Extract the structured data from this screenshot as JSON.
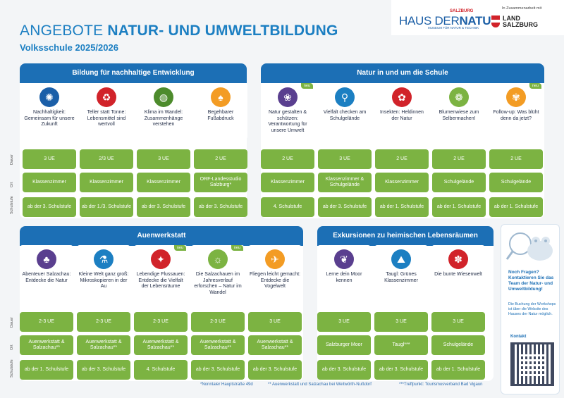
{
  "header": {
    "title_prefix": "ANGEBOTE",
    "title_bold": "NATUR- UND UMWELTBILDUNG",
    "subtitle": "Volksschule 2025/2026",
    "logo_haus": "HAUS DER",
    "logo_natur": "NATUR",
    "logo_salzburg": "SALZBURG",
    "logo_tagline": "MUSEUM FÜR NATUR & TECHNIK",
    "coop_text": "In Zusammenarbeit mit",
    "land_line1": "LAND",
    "land_line2": "SALZBURG"
  },
  "row_labels": {
    "dauer": "Dauer",
    "ort": "Ort",
    "schulstufe": "Schulstufe"
  },
  "sections": [
    {
      "title": "Bildung für nachhaltige Entwicklung",
      "color": "#1c6fb5",
      "cards": [
        {
          "label": "Nachhaltigkeit: Gemeinsam für unsere Zukunft",
          "icon": "sdg-wheel-icon",
          "icon_color": "#1b5fa8",
          "glyph": "✺",
          "neu": false,
          "dauer": "3 UE",
          "ort": "Klassenzimmer",
          "stufe": "ab der 3. Schulstufe"
        },
        {
          "label": "Teller statt Tonne: Lebensmittel sind wertvoll",
          "icon": "trash-can-icon",
          "icon_color": "#d1232a",
          "glyph": "♻",
          "neu": false,
          "dauer": "2/3 UE",
          "ort": "Klassenzimmer",
          "stufe": "ab der 1./3. Schulstufe"
        },
        {
          "label": "Klima im Wandel: Zusammenhänge verstehen",
          "icon": "globe-icon",
          "icon_color": "#4d8b2c",
          "glyph": "◍",
          "neu": false,
          "dauer": "3 UE",
          "ort": "Klassenzimmer",
          "stufe": "ab der 3. Schulstufe"
        },
        {
          "label": "Begehbarer Fußabdruck",
          "icon": "footprint-icon",
          "icon_color": "#f39c24",
          "glyph": "♠",
          "neu": false,
          "dauer": "2 UE",
          "ort": "ORF-Landesstudio Salzburg*",
          "stufe": "ab der 3. Schulstufe"
        }
      ]
    },
    {
      "title": "Natur in und um die Schule",
      "color": "#1c6fb5",
      "cards": [
        {
          "label": "Natur gestalten & schützen: Verantwortung für unsere Umwelt",
          "icon": "plant-hand-icon",
          "icon_color": "#5a3f8f",
          "glyph": "❀",
          "neu": true,
          "dauer": "2 UE",
          "ort": "Klassenzimmer",
          "stufe": "4. Schulstufe"
        },
        {
          "label": "Vielfalt checken am Schulgelände",
          "icon": "magnifier-icon",
          "icon_color": "#1c7fc2",
          "glyph": "⚲",
          "neu": false,
          "dauer": "3 UE",
          "ort": "Klassenzimmer & Schulgelände",
          "stufe": "ab der 3. Schulstufe"
        },
        {
          "label": "Insekten: Heldinnen der Natur",
          "icon": "ladybug-icon",
          "icon_color": "#d1232a",
          "glyph": "✿",
          "neu": false,
          "dauer": "2 UE",
          "ort": "Klassenzimmer",
          "stufe": "ab der 1. Schulstufe"
        },
        {
          "label": "Blumenwiese zum Selbermachen!",
          "icon": "flower-icon",
          "icon_color": "#7cb342",
          "glyph": "❁",
          "neu": false,
          "dauer": "2 UE",
          "ort": "Schulgelände",
          "stufe": "ab der 1. Schulstufe"
        },
        {
          "label": "Follow-up: Was blüht denn da jetzt?",
          "icon": "blossom-icon",
          "icon_color": "#f39c24",
          "glyph": "✾",
          "neu": true,
          "dauer": "2 UE",
          "ort": "Schulgelände",
          "stufe": "ab der 1. Schulstufe"
        }
      ]
    },
    {
      "title": "Auenwerkstatt",
      "color": "#1c6fb5",
      "cards": [
        {
          "label": "Abenteuer Salzachau: Entdecke die Natur",
          "icon": "tree-icon",
          "icon_color": "#5a3f8f",
          "glyph": "♣",
          "neu": false,
          "dauer": "2-3 UE",
          "ort": "Auenwerkstatt & Salzachau**",
          "stufe": "ab der 1. Schulstufe"
        },
        {
          "label": "Kleine Welt ganz groß: Mikroskopieren in der Au",
          "icon": "microscope-icon",
          "icon_color": "#1c7fc2",
          "glyph": "⚗",
          "neu": false,
          "dauer": "2-3 UE",
          "ort": "Auenwerkstatt & Salzachau**",
          "stufe": "ab der 3. Schulstufe"
        },
        {
          "label": "Lebendige Flussauen: Entdecke die Vielfalt der Lebensräume",
          "icon": "frog-icon",
          "icon_color": "#d1232a",
          "glyph": "✦",
          "neu": true,
          "dauer": "2-3 UE",
          "ort": "Auenwerkstatt & Salzachau**",
          "stufe": "4. Schulstufe"
        },
        {
          "label": "Die Salzachauen im Jahresverlauf erforschen – Natur im Wandel",
          "icon": "seasons-icon",
          "icon_color": "#7cb342",
          "glyph": "☼",
          "neu": true,
          "dauer": "2-3 UE",
          "ort": "Auenwerkstatt & Salzachau**",
          "stufe": "ab der 3. Schulstufe"
        },
        {
          "label": "Fliegen leicht gemacht: Entdecke die Vogelwelt",
          "icon": "bird-icon",
          "icon_color": "#f39c24",
          "glyph": "✈",
          "neu": false,
          "dauer": "3 UE",
          "ort": "Auenwerkstatt & Salzachau**",
          "stufe": "ab der 3. Schulstufe"
        }
      ]
    },
    {
      "title": "Exkursionen zu heimischen Lebensräumen",
      "color": "#1c6fb5",
      "cards": [
        {
          "label": "Lerne dein Moor kennen",
          "icon": "moor-icon",
          "icon_color": "#5a3f8f",
          "glyph": "❦",
          "neu": false,
          "dauer": "3 UE",
          "ort": "Salzburger Moor",
          "stufe": "ab der 3. Schulstufe"
        },
        {
          "label": "Taugl: Grünes Klassenzimmer",
          "icon": "landscape-icon",
          "icon_color": "#1c7fc2",
          "glyph": "⛰",
          "neu": false,
          "dauer": "3 UE",
          "ort": "Taugl***",
          "stufe": "ab der 3. Schulstufe"
        },
        {
          "label": "Die bunte Wiesenwelt",
          "icon": "meadow-icon",
          "icon_color": "#d1232a",
          "glyph": "✽",
          "neu": false,
          "dauer": "3 UE",
          "ort": "Schulgelände",
          "stufe": "ab der 1. Schulstufe"
        }
      ]
    }
  ],
  "neu_label": "neu",
  "footnotes": {
    "f1": "*Nonntaler Hauptstraße 49d",
    "f2": "** Auenwerkstatt und Salzachau bei Weitwörth-Nußdorf",
    "f3": "***Treffpunkt: Tourismusverband Bad Vigaun"
  },
  "contact": {
    "question": "Noch Fragen? Kontaktieren Sie das Team der Natur- und Umweltbildung!",
    "info": "Die Buchung der Workshops ist über die Website des Hauses der Natur möglich.",
    "kontakt": "Kontakt"
  }
}
